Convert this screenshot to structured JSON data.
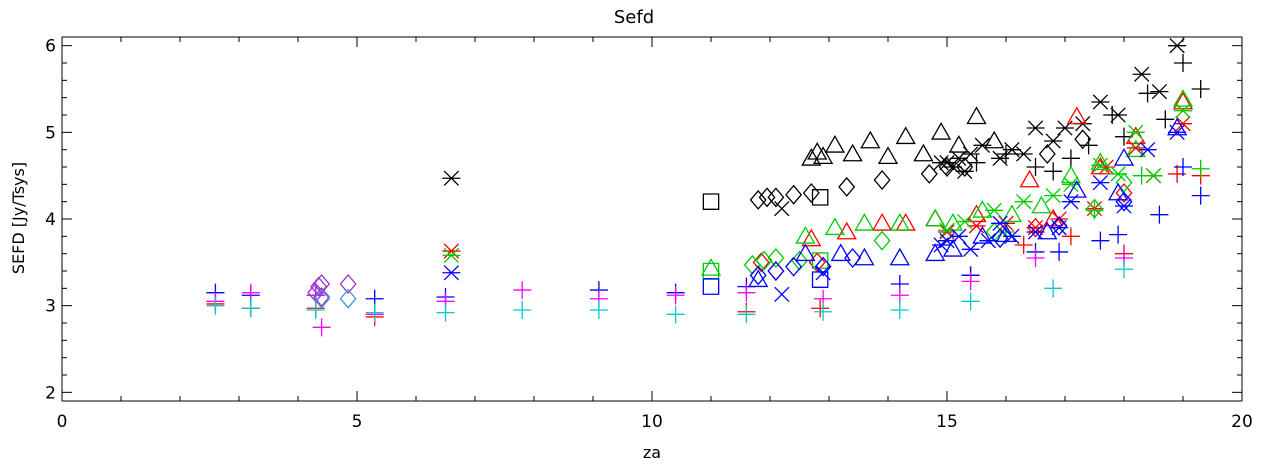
{
  "chart_data": {
    "type": "scatter",
    "title": "Sefd",
    "xlabel": "za",
    "ylabel": "SEFD [Jy/Tsys]",
    "xlim": [
      0,
      20
    ],
    "ylim": [
      1.9,
      6.1
    ],
    "x_ticks": [
      0,
      5,
      10,
      15,
      20
    ],
    "y_ticks": [
      2,
      3,
      4,
      5,
      6
    ],
    "x_tick_labels": [
      "0",
      "5",
      "10",
      "15",
      "20"
    ],
    "y_tick_labels": [
      "2",
      "3",
      "4",
      "5",
      "6"
    ],
    "grid": false,
    "legend": "none",
    "series": [
      {
        "color": "#000000",
        "marker": "asterisk",
        "points": [
          [
            6.6,
            4.47
          ],
          [
            15.0,
            4.65
          ],
          [
            15.1,
            4.6
          ],
          [
            15.2,
            4.7
          ],
          [
            15.4,
            4.75
          ],
          [
            15.6,
            4.85
          ],
          [
            15.9,
            4.7
          ],
          [
            16.1,
            4.8
          ],
          [
            16.3,
            4.75
          ],
          [
            16.5,
            5.05
          ],
          [
            16.8,
            4.9
          ],
          [
            17.0,
            5.05
          ],
          [
            17.3,
            5.1
          ],
          [
            17.6,
            5.35
          ],
          [
            17.9,
            5.2
          ],
          [
            18.3,
            5.67
          ],
          [
            18.6,
            5.47
          ],
          [
            18.9,
            6.0
          ],
          [
            14.9,
            4.65
          ],
          [
            15.3,
            4.55
          ]
        ]
      },
      {
        "color": "#000000",
        "marker": "plus",
        "points": [
          [
            16.5,
            4.6
          ],
          [
            16.8,
            4.55
          ],
          [
            17.1,
            4.7
          ],
          [
            17.4,
            4.85
          ],
          [
            17.8,
            5.2
          ],
          [
            18.0,
            4.95
          ],
          [
            18.4,
            5.45
          ],
          [
            18.7,
            5.15
          ],
          [
            19.0,
            5.8
          ],
          [
            19.3,
            5.5
          ],
          [
            15.5,
            4.65
          ],
          [
            16.0,
            4.75
          ]
        ]
      },
      {
        "color": "#000000",
        "marker": "triangle",
        "points": [
          [
            12.7,
            4.7
          ],
          [
            12.8,
            4.77
          ],
          [
            12.9,
            4.72
          ],
          [
            13.1,
            4.85
          ],
          [
            13.4,
            4.75
          ],
          [
            13.7,
            4.9
          ],
          [
            14.0,
            4.72
          ],
          [
            14.3,
            4.95
          ],
          [
            14.6,
            4.75
          ],
          [
            14.9,
            5.0
          ],
          [
            15.2,
            4.85
          ],
          [
            15.5,
            5.18
          ],
          [
            15.8,
            4.9
          ]
        ]
      },
      {
        "color": "#000000",
        "marker": "diamond",
        "points": [
          [
            11.8,
            4.22
          ],
          [
            11.95,
            4.25
          ],
          [
            12.1,
            4.25
          ],
          [
            12.4,
            4.28
          ],
          [
            12.7,
            4.3
          ],
          [
            13.3,
            4.37
          ],
          [
            13.9,
            4.45
          ],
          [
            14.7,
            4.52
          ],
          [
            15.0,
            4.6
          ],
          [
            15.3,
            4.6
          ],
          [
            16.7,
            4.75
          ],
          [
            17.3,
            4.92
          ]
        ]
      },
      {
        "color": "#000000",
        "marker": "square",
        "points": [
          [
            11.0,
            4.2
          ],
          [
            12.85,
            4.25
          ]
        ]
      },
      {
        "color": "#000000",
        "marker": "cross",
        "points": [
          [
            12.2,
            4.12
          ]
        ]
      },
      {
        "color": "#ff0000",
        "marker": "asterisk",
        "points": [
          [
            6.6,
            3.63
          ],
          [
            15.0,
            3.85
          ],
          [
            15.5,
            3.92
          ],
          [
            16.0,
            3.95
          ],
          [
            16.5,
            3.9
          ],
          [
            16.9,
            4.0
          ],
          [
            17.5,
            4.12
          ],
          [
            17.7,
            4.6
          ],
          [
            18.2,
            4.82
          ],
          [
            18.5,
            4.5
          ],
          [
            19.0,
            5.1
          ]
        ]
      },
      {
        "color": "#ff0000",
        "marker": "triangle",
        "points": [
          [
            12.7,
            3.77
          ],
          [
            13.3,
            3.85
          ],
          [
            13.9,
            3.95
          ],
          [
            14.3,
            3.95
          ],
          [
            14.8,
            4.0
          ],
          [
            15.5,
            4.05
          ],
          [
            16.4,
            4.45
          ],
          [
            16.8,
            4.0
          ],
          [
            17.2,
            5.18
          ],
          [
            17.6,
            4.6
          ],
          [
            18.2,
            4.95
          ],
          [
            19.0,
            5.35
          ]
        ]
      },
      {
        "color": "#ff0000",
        "marker": "diamond",
        "points": [
          [
            11.85,
            3.5
          ],
          [
            12.1,
            3.4
          ],
          [
            12.8,
            3.5
          ],
          [
            16.5,
            3.9
          ],
          [
            18.0,
            4.3
          ]
        ]
      },
      {
        "color": "#ff0000",
        "marker": "plus",
        "points": [
          [
            2.6,
            3.02
          ],
          [
            3.2,
            2.97
          ],
          [
            4.3,
            2.97
          ],
          [
            5.3,
            2.87
          ],
          [
            11.6,
            2.93
          ],
          [
            12.85,
            2.97
          ],
          [
            15.4,
            3.35
          ],
          [
            17.1,
            3.8
          ],
          [
            18.0,
            3.6
          ],
          [
            18.9,
            4.52
          ],
          [
            19.3,
            4.5
          ],
          [
            16.3,
            3.7
          ]
        ]
      },
      {
        "color": "#00cc00",
        "marker": "asterisk",
        "points": [
          [
            6.6,
            3.58
          ],
          [
            15.0,
            3.87
          ],
          [
            15.3,
            3.97
          ],
          [
            15.8,
            4.1
          ],
          [
            16.3,
            4.2
          ],
          [
            16.8,
            4.27
          ],
          [
            17.1,
            4.4
          ],
          [
            17.6,
            4.62
          ],
          [
            17.9,
            4.52
          ],
          [
            18.2,
            5.0
          ],
          [
            18.5,
            4.5
          ],
          [
            19.0,
            5.25
          ]
        ]
      },
      {
        "color": "#00cc00",
        "marker": "triangle",
        "points": [
          [
            11.0,
            3.43
          ],
          [
            12.6,
            3.8
          ],
          [
            13.1,
            3.9
          ],
          [
            13.6,
            3.95
          ],
          [
            14.2,
            3.95
          ],
          [
            14.8,
            4.0
          ],
          [
            15.1,
            3.95
          ],
          [
            15.6,
            4.1
          ],
          [
            16.1,
            4.05
          ],
          [
            16.6,
            4.15
          ],
          [
            17.1,
            4.5
          ],
          [
            17.6,
            4.65
          ],
          [
            18.2,
            4.8
          ],
          [
            19.0,
            5.38
          ]
        ]
      },
      {
        "color": "#00cc00",
        "marker": "diamond",
        "points": [
          [
            11.7,
            3.47
          ],
          [
            11.9,
            3.52
          ],
          [
            12.1,
            3.55
          ],
          [
            12.5,
            3.52
          ],
          [
            13.9,
            3.75
          ],
          [
            15.8,
            3.85
          ],
          [
            17.5,
            4.12
          ],
          [
            18.0,
            4.42
          ]
        ]
      },
      {
        "color": "#00cc00",
        "marker": "square",
        "points": [
          [
            11.0,
            3.4
          ],
          [
            12.85,
            3.52
          ]
        ]
      },
      {
        "color": "#00cc00",
        "marker": "plus",
        "points": [
          [
            16.0,
            3.85
          ],
          [
            17.5,
            4.1
          ],
          [
            18.3,
            4.5
          ],
          [
            19.3,
            4.58
          ]
        ]
      },
      {
        "color": "#0000ff",
        "marker": "asterisk",
        "points": [
          [
            6.6,
            3.38
          ],
          [
            14.9,
            3.7
          ],
          [
            15.0,
            3.75
          ],
          [
            15.2,
            3.8
          ],
          [
            15.4,
            3.65
          ],
          [
            15.7,
            3.75
          ],
          [
            16.1,
            3.8
          ],
          [
            16.5,
            3.85
          ],
          [
            16.9,
            3.9
          ],
          [
            17.1,
            4.2
          ],
          [
            17.6,
            4.42
          ],
          [
            18.0,
            4.15
          ],
          [
            18.4,
            4.8
          ],
          [
            18.9,
            5.0
          ],
          [
            15.9,
            3.95
          ]
        ]
      },
      {
        "color": "#0000ff",
        "marker": "triangle",
        "points": [
          [
            11.8,
            3.3
          ],
          [
            12.6,
            3.6
          ],
          [
            13.2,
            3.6
          ],
          [
            13.6,
            3.55
          ],
          [
            14.2,
            3.55
          ],
          [
            14.8,
            3.6
          ],
          [
            15.1,
            3.65
          ],
          [
            15.6,
            3.8
          ],
          [
            16.0,
            3.82
          ],
          [
            16.7,
            3.85
          ],
          [
            17.2,
            4.33
          ],
          [
            17.9,
            4.3
          ],
          [
            18.0,
            4.7
          ],
          [
            18.9,
            5.05
          ]
        ]
      },
      {
        "color": "#0000ff",
        "marker": "diamond",
        "points": [
          [
            11.8,
            3.35
          ],
          [
            12.1,
            3.4
          ],
          [
            12.4,
            3.45
          ],
          [
            12.9,
            3.45
          ],
          [
            13.4,
            3.55
          ],
          [
            15.9,
            3.78
          ],
          [
            16.9,
            3.92
          ],
          [
            18.0,
            4.2
          ]
        ]
      },
      {
        "color": "#0000ff",
        "marker": "square",
        "points": [
          [
            11.0,
            3.22
          ],
          [
            12.85,
            3.3
          ]
        ]
      },
      {
        "color": "#0000ff",
        "marker": "cross",
        "points": [
          [
            12.2,
            3.13
          ],
          [
            12.9,
            3.38
          ]
        ]
      },
      {
        "color": "#0000ff",
        "marker": "plus",
        "points": [
          [
            2.6,
            3.15
          ],
          [
            3.2,
            3.12
          ],
          [
            4.3,
            3.12
          ],
          [
            5.3,
            3.08
          ],
          [
            6.5,
            3.1
          ],
          [
            9.1,
            3.18
          ],
          [
            10.4,
            3.15
          ],
          [
            11.6,
            3.22
          ],
          [
            14.2,
            3.25
          ],
          [
            15.4,
            3.35
          ],
          [
            16.5,
            3.62
          ],
          [
            16.9,
            3.62
          ],
          [
            17.6,
            3.75
          ],
          [
            17.9,
            3.82
          ],
          [
            18.6,
            4.05
          ],
          [
            19.0,
            4.6
          ],
          [
            19.3,
            4.27
          ]
        ]
      },
      {
        "color": "#ff00ff",
        "marker": "plus",
        "points": [
          [
            2.6,
            3.05
          ],
          [
            3.2,
            3.15
          ],
          [
            4.3,
            3.12
          ],
          [
            4.4,
            2.75
          ],
          [
            5.3,
            2.9
          ],
          [
            6.5,
            3.05
          ],
          [
            7.8,
            3.18
          ],
          [
            9.1,
            3.08
          ],
          [
            10.4,
            3.12
          ],
          [
            11.6,
            3.15
          ],
          [
            12.9,
            3.08
          ],
          [
            14.2,
            3.12
          ],
          [
            15.4,
            3.28
          ],
          [
            16.5,
            3.55
          ],
          [
            18.0,
            3.55
          ]
        ]
      },
      {
        "color": "#9933cc",
        "marker": "diamond",
        "points": [
          [
            4.35,
            3.22
          ],
          [
            4.4,
            3.25
          ],
          [
            4.85,
            3.25
          ],
          [
            4.3,
            3.15
          ],
          [
            4.4,
            3.1
          ]
        ]
      },
      {
        "color": "#00cccc",
        "marker": "plus",
        "points": [
          [
            2.6,
            3.0
          ],
          [
            3.2,
            2.97
          ],
          [
            4.3,
            2.95
          ],
          [
            5.3,
            2.92
          ],
          [
            6.5,
            2.92
          ],
          [
            7.8,
            2.95
          ],
          [
            9.1,
            2.95
          ],
          [
            10.4,
            2.9
          ],
          [
            11.6,
            2.9
          ],
          [
            12.9,
            2.93
          ],
          [
            14.2,
            2.95
          ],
          [
            15.4,
            3.05
          ],
          [
            16.8,
            3.2
          ],
          [
            18.0,
            3.42
          ]
        ]
      },
      {
        "color": "#4499cc",
        "marker": "diamond",
        "points": [
          [
            4.4,
            3.08
          ],
          [
            4.85,
            3.08
          ]
        ]
      }
    ]
  }
}
